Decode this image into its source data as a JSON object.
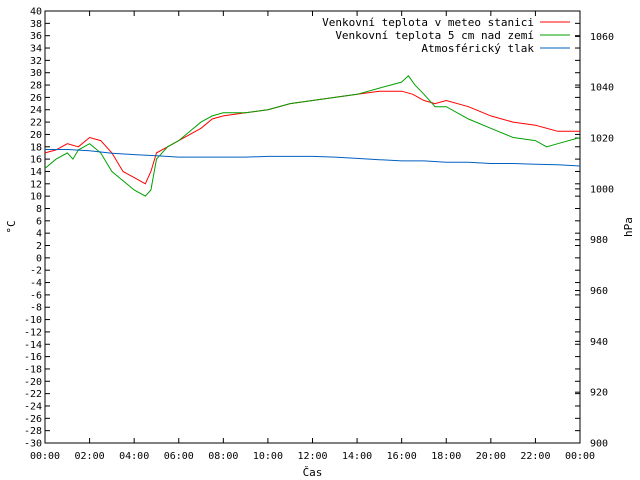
{
  "chart_data": {
    "type": "line",
    "xlabel": "Čas",
    "ylabel_left": "°C",
    "ylabel_right": "hPa",
    "ylim_left": [
      -30,
      40
    ],
    "ylim_right": [
      900,
      1070
    ],
    "xlim_hours": [
      0,
      24
    ],
    "x_tick_labels": [
      "00:00",
      "02:00",
      "04:00",
      "06:00",
      "08:00",
      "10:00",
      "12:00",
      "14:00",
      "16:00",
      "18:00",
      "20:00",
      "22:00",
      "00:00"
    ],
    "y_left_ticks": [
      40,
      38,
      36,
      34,
      32,
      30,
      28,
      26,
      24,
      22,
      20,
      18,
      16,
      14,
      12,
      10,
      8,
      6,
      4,
      2,
      0,
      -2,
      -4,
      -6,
      -8,
      -10,
      -12,
      -14,
      -16,
      -18,
      -20,
      -22,
      -24,
      -26,
      -28,
      -30
    ],
    "y_right_ticks": [
      1060,
      1040,
      1020,
      1000,
      980,
      960,
      940,
      920,
      900
    ],
    "grid": false,
    "legend_position": "top-right",
    "series": [
      {
        "name": "Venkovní teplota v meteo stanici",
        "color": "#ff0000",
        "axis": "left",
        "points": [
          [
            0,
            17
          ],
          [
            0.5,
            17.5
          ],
          [
            1,
            18.5
          ],
          [
            1.5,
            18
          ],
          [
            2,
            19.5
          ],
          [
            2.5,
            19
          ],
          [
            3,
            17
          ],
          [
            3.5,
            14
          ],
          [
            4,
            13
          ],
          [
            4.5,
            12
          ],
          [
            4.75,
            14
          ],
          [
            5,
            17
          ],
          [
            5.5,
            18
          ],
          [
            6,
            19
          ],
          [
            6.5,
            20
          ],
          [
            7,
            21
          ],
          [
            7.5,
            22.5
          ],
          [
            8,
            23
          ],
          [
            9,
            23.5
          ],
          [
            10,
            24
          ],
          [
            11,
            25
          ],
          [
            12,
            25.5
          ],
          [
            13,
            26
          ],
          [
            14,
            26.5
          ],
          [
            15,
            27
          ],
          [
            16,
            27
          ],
          [
            16.5,
            26.5
          ],
          [
            17,
            25.5
          ],
          [
            17.5,
            25
          ],
          [
            18,
            25.5
          ],
          [
            19,
            24.5
          ],
          [
            20,
            23
          ],
          [
            21,
            22
          ],
          [
            22,
            21.5
          ],
          [
            23,
            20.5
          ],
          [
            24,
            20.5
          ]
        ]
      },
      {
        "name": "Venkovní teplota 5 cm nad zemí",
        "color": "#00a000",
        "axis": "left",
        "points": [
          [
            0,
            14.5
          ],
          [
            0.5,
            16
          ],
          [
            1,
            17
          ],
          [
            1.25,
            16
          ],
          [
            1.5,
            17.5
          ],
          [
            2,
            18.5
          ],
          [
            2.5,
            17
          ],
          [
            3,
            14
          ],
          [
            3.5,
            12.5
          ],
          [
            4,
            11
          ],
          [
            4.5,
            10
          ],
          [
            4.75,
            11
          ],
          [
            5,
            16
          ],
          [
            5.5,
            18
          ],
          [
            6,
            19
          ],
          [
            6.5,
            20.5
          ],
          [
            7,
            22
          ],
          [
            7.5,
            23
          ],
          [
            8,
            23.5
          ],
          [
            9,
            23.5
          ],
          [
            10,
            24
          ],
          [
            11,
            25
          ],
          [
            12,
            25.5
          ],
          [
            13,
            26
          ],
          [
            14,
            26.5
          ],
          [
            15,
            27.5
          ],
          [
            15.5,
            28
          ],
          [
            16,
            28.5
          ],
          [
            16.3,
            29.5
          ],
          [
            16.6,
            28
          ],
          [
            17,
            26.5
          ],
          [
            17.5,
            24.5
          ],
          [
            18,
            24.5
          ],
          [
            19,
            22.5
          ],
          [
            20,
            21
          ],
          [
            21,
            19.5
          ],
          [
            22,
            19
          ],
          [
            22.5,
            18
          ],
          [
            23,
            18.5
          ],
          [
            24,
            19.5
          ]
        ]
      },
      {
        "name": "Atmosférický tlak",
        "color": "#0060c0",
        "axis": "right",
        "points": [
          [
            0,
            1015.5
          ],
          [
            1,
            1015.5
          ],
          [
            2,
            1015
          ],
          [
            3,
            1014
          ],
          [
            4,
            1013.5
          ],
          [
            5,
            1013
          ],
          [
            6,
            1012.5
          ],
          [
            7,
            1012.5
          ],
          [
            8,
            1012.5
          ],
          [
            9,
            1012.5
          ],
          [
            10,
            1012.8
          ],
          [
            11,
            1012.8
          ],
          [
            12,
            1012.8
          ],
          [
            13,
            1012.5
          ],
          [
            14,
            1012
          ],
          [
            15,
            1011.5
          ],
          [
            16,
            1011
          ],
          [
            17,
            1011
          ],
          [
            18,
            1010.5
          ],
          [
            19,
            1010.5
          ],
          [
            20,
            1010
          ],
          [
            21,
            1010
          ],
          [
            22,
            1009.7
          ],
          [
            23,
            1009.5
          ],
          [
            24,
            1009
          ]
        ]
      }
    ]
  }
}
